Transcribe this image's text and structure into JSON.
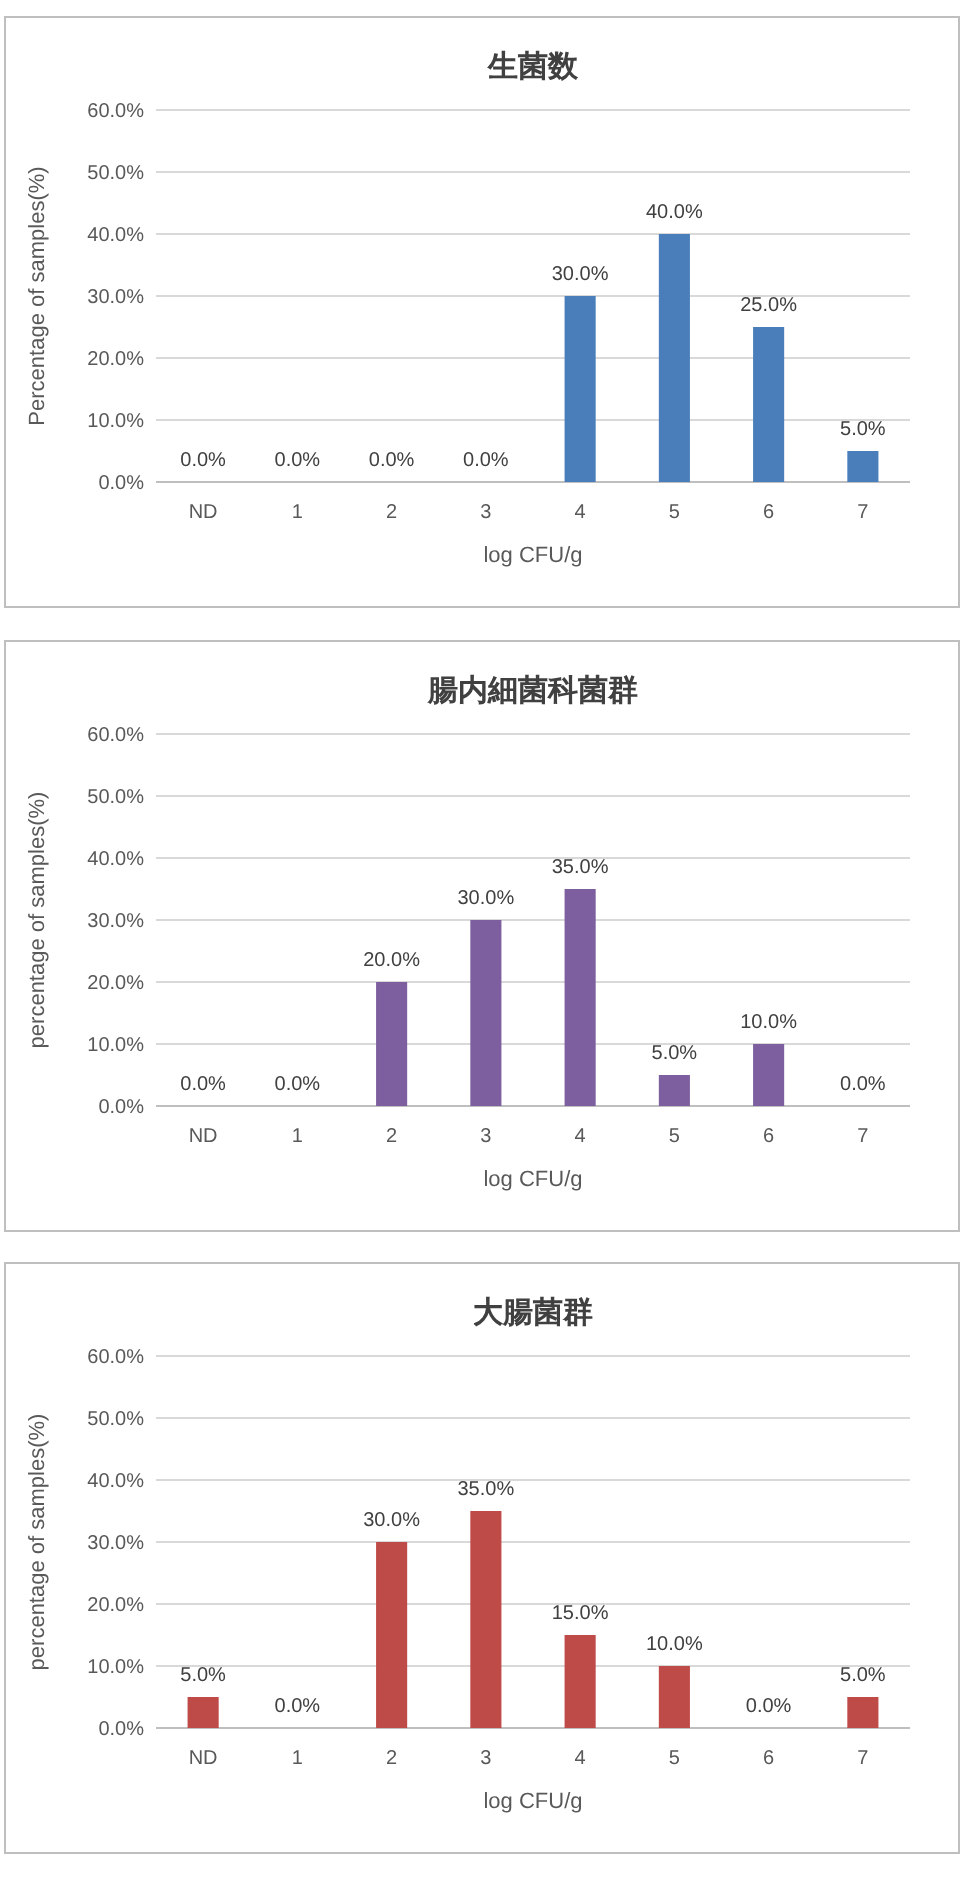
{
  "chart_data": [
    {
      "type": "bar",
      "title": "生菌数",
      "xlabel": "log CFU/g",
      "ylabel": "Percentage of samples(%)",
      "categories": [
        "ND",
        "1",
        "2",
        "3",
        "4",
        "5",
        "6",
        "7"
      ],
      "values": [
        0,
        0,
        0,
        0,
        30,
        40,
        25,
        5
      ],
      "value_labels": [
        "0.0%",
        "0.0%",
        "0.0%",
        "0.0%",
        "30.0%",
        "40.0%",
        "25.0%",
        "5.0%"
      ],
      "color": "#4a7ebb",
      "ylim": [
        0,
        60
      ],
      "yticks": [
        {
          "value": 0,
          "label": "0.0%"
        },
        {
          "value": 10,
          "label": "10.0%"
        },
        {
          "value": 20,
          "label": "20.0%"
        },
        {
          "value": 30,
          "label": "30.0%"
        },
        {
          "value": 40,
          "label": "40.0%"
        },
        {
          "value": 50,
          "label": "50.0%"
        },
        {
          "value": 60,
          "label": "60.0%"
        }
      ],
      "grid": "y"
    },
    {
      "type": "bar",
      "title": "腸内細菌科菌群",
      "xlabel": "log CFU/g",
      "ylabel": "percentage of samples(%)",
      "categories": [
        "ND",
        "1",
        "2",
        "3",
        "4",
        "5",
        "6",
        "7"
      ],
      "values": [
        0,
        0,
        20,
        30,
        35,
        5,
        10,
        0
      ],
      "value_labels": [
        "0.0%",
        "0.0%",
        "20.0%",
        "30.0%",
        "35.0%",
        "5.0%",
        "10.0%",
        "0.0%"
      ],
      "color": "#7d5fa0",
      "ylim": [
        0,
        60
      ],
      "yticks": [
        {
          "value": 0,
          "label": "0.0%"
        },
        {
          "value": 10,
          "label": "10.0%"
        },
        {
          "value": 20,
          "label": "20.0%"
        },
        {
          "value": 30,
          "label": "30.0%"
        },
        {
          "value": 40,
          "label": "40.0%"
        },
        {
          "value": 50,
          "label": "50.0%"
        },
        {
          "value": 60,
          "label": "60.0%"
        }
      ],
      "grid": "y"
    },
    {
      "type": "bar",
      "title": "大腸菌群",
      "xlabel": "log CFU/g",
      "ylabel": "percentage of samples(%)",
      "categories": [
        "ND",
        "1",
        "2",
        "3",
        "4",
        "5",
        "6",
        "7"
      ],
      "values": [
        5,
        0,
        30,
        35,
        15,
        10,
        0,
        5
      ],
      "value_labels": [
        "5.0%",
        "0.0%",
        "30.0%",
        "35.0%",
        "15.0%",
        "10.0%",
        "0.0%",
        "5.0%"
      ],
      "color": "#be4b48",
      "ylim": [
        0,
        60
      ],
      "yticks": [
        {
          "value": 0,
          "label": "0.0%"
        },
        {
          "value": 10,
          "label": "10.0%"
        },
        {
          "value": 20,
          "label": "20.0%"
        },
        {
          "value": 30,
          "label": "30.0%"
        },
        {
          "value": 40,
          "label": "40.0%"
        },
        {
          "value": 50,
          "label": "50.0%"
        },
        {
          "value": 60,
          "label": "60.0%"
        }
      ],
      "grid": "y"
    }
  ]
}
